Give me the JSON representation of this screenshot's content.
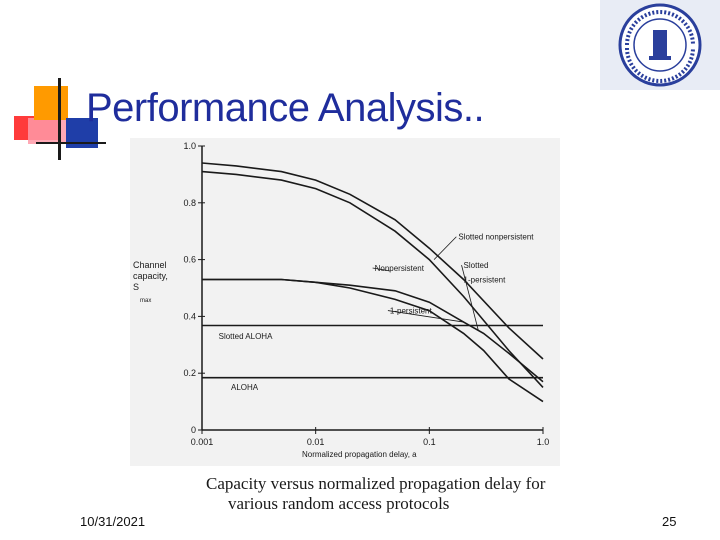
{
  "slide": {
    "title": "Performance Analysis..",
    "date": "10/31/2021",
    "page": "25",
    "caption_line1": "Capacity versus normalized propagation delay for",
    "caption_line2": "various random access protocols",
    "logo_text": "KING FAHD UNIVERSITY OF PETROLEUM & MINERALS"
  },
  "colors": {
    "title": "#1f2d9c",
    "deco_red": "#ff3b3b",
    "deco_orange": "#ff9a00",
    "deco_blue": "#1f3ea8"
  },
  "chart_data": {
    "type": "line",
    "xscale": "log",
    "xlim": [
      0.001,
      1.0
    ],
    "ylim": [
      0,
      1.0
    ],
    "xlabel": "Normalized propagation delay, a",
    "ylabel_lines": [
      "Channel",
      "capacity,",
      "S"
    ],
    "ylabel_sub": "max",
    "x_ticks": [
      "0.001",
      "0.01",
      "0.1",
      "1.0"
    ],
    "x_tick_values": [
      0.001,
      0.01,
      0.1,
      1.0
    ],
    "y_ticks": [
      "0",
      "0.2",
      "0.4",
      "0.6",
      "0.8",
      "1.0"
    ],
    "y_tick_values": [
      0,
      0.2,
      0.4,
      0.6,
      0.8,
      1.0
    ],
    "series": [
      {
        "name": "Slotted nonpersistent",
        "x": [
          0.001,
          0.002,
          0.005,
          0.01,
          0.02,
          0.05,
          0.1,
          0.2,
          0.5,
          1.0
        ],
        "y": [
          0.94,
          0.93,
          0.91,
          0.88,
          0.83,
          0.74,
          0.64,
          0.53,
          0.36,
          0.25
        ]
      },
      {
        "name": "Nonpersistent",
        "x": [
          0.001,
          0.002,
          0.005,
          0.01,
          0.02,
          0.05,
          0.1,
          0.2,
          0.5,
          1.0
        ],
        "y": [
          0.91,
          0.9,
          0.88,
          0.85,
          0.8,
          0.7,
          0.6,
          0.47,
          0.28,
          0.15
        ]
      },
      {
        "name": "Slotted 1-persistent",
        "x": [
          0.001,
          0.005,
          0.01,
          0.02,
          0.05,
          0.1,
          0.2,
          0.3,
          0.5,
          1.0
        ],
        "y": [
          0.53,
          0.53,
          0.52,
          0.51,
          0.49,
          0.45,
          0.38,
          0.34,
          0.27,
          0.17
        ]
      },
      {
        "name": "1-persistent",
        "x": [
          0.001,
          0.005,
          0.01,
          0.02,
          0.05,
          0.1,
          0.2,
          0.3,
          0.5,
          1.0
        ],
        "y": [
          0.53,
          0.53,
          0.52,
          0.5,
          0.46,
          0.42,
          0.34,
          0.28,
          0.18,
          0.1
        ]
      },
      {
        "name": "Slotted ALOHA",
        "x": [
          0.001,
          1.0
        ],
        "y": [
          0.368,
          0.368
        ]
      },
      {
        "name": "ALOHA",
        "x": [
          0.001,
          1.0
        ],
        "y": [
          0.184,
          0.184
        ]
      }
    ],
    "annotations": [
      {
        "text": "Slotted nonpersistent",
        "series": "Slotted nonpersistent",
        "x": 0.18,
        "y": 0.67,
        "ax": 0.11,
        "ay": 0.6
      },
      {
        "text": "Nonpersistent",
        "series": "Nonpersistent",
        "x": 0.033,
        "y": 0.56,
        "ax": 0.045,
        "ay": 0.56
      },
      {
        "text": "Slotted",
        "series": "Slotted 1-persistent",
        "x": 0.2,
        "y": 0.57,
        "ax": 0.27,
        "ay": 0.35
      },
      {
        "text": "1-persistent",
        "series": "Slotted 1-persistent",
        "x": 0.2,
        "y": 0.52
      },
      {
        "text": "1-persistent",
        "series": "1-persistent",
        "x": 0.045,
        "y": 0.41,
        "ax": 0.2,
        "ay": 0.38
      },
      {
        "text": "Slotted ALOHA",
        "series": "Slotted ALOHA",
        "x": 0.0014,
        "y": 0.32
      },
      {
        "text": "ALOHA",
        "series": "ALOHA",
        "x": 0.0018,
        "y": 0.14
      }
    ],
    "grid": false,
    "legend": "none"
  }
}
